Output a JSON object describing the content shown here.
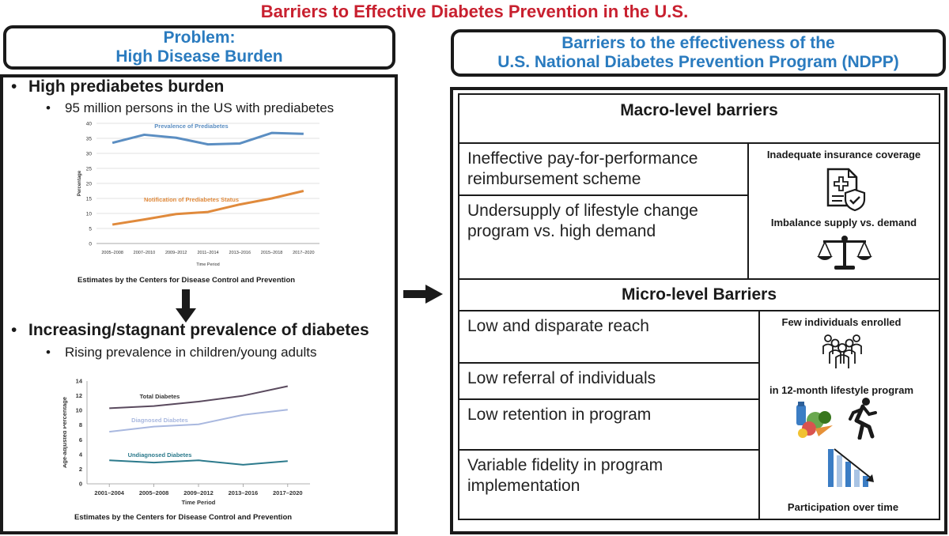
{
  "title": "Barriers to Effective Diabetes Prevention in the U.S.",
  "left_header": {
    "line1": "Problem:",
    "line2": "High Disease Burden"
  },
  "right_header": {
    "line1": "Barriers to the effectiveness of the",
    "line2": "U.S. National Diabetes Prevention Program (NDPP)"
  },
  "left_panel": {
    "bullet1": "High prediabetes burden",
    "sub1": "95 million persons in the US with prediabetes",
    "caption1": "Estimates by the Centers for Disease Control and Prevention",
    "bullet2": "Increasing/stagnant prevalence of diabetes",
    "sub2": "Rising prevalence in children/young adults",
    "caption2": "Estimates by the  Centers for Disease Control and Prevention"
  },
  "macro": {
    "title": "Macro-level barriers",
    "items": [
      "Ineffective pay-for-performance reimbursement scheme",
      "Undersupply of lifestyle change program vs. high demand"
    ],
    "side_label1": "Inadequate  insurance coverage",
    "side_label2": "Imbalance supply vs. demand"
  },
  "micro": {
    "title": "Micro-level Barriers",
    "items": [
      "Low and disparate reach",
      "Low referral of individuals",
      "Low retention in program",
      "Variable fidelity in program implementation"
    ],
    "side_label1": "Few  individuals enrolled",
    "side_label2": "in 12-month lifestyle program",
    "side_label3": "Participation over time"
  },
  "chart_data": [
    {
      "type": "line",
      "x": [
        "2005–2008",
        "2007–2010",
        "2009–2012",
        "2011–2014",
        "2013–2016",
        "2015–2018",
        "2017–2020"
      ],
      "series": [
        {
          "name": "Prevalence of Prediabetes",
          "values": [
            33.5,
            36.2,
            35.2,
            33.0,
            33.3,
            36.8,
            36.5
          ],
          "color": "#5b8ec2"
        },
        {
          "name": "Notification of Prediabetes Status",
          "values": [
            6.3,
            8.0,
            9.8,
            10.5,
            13.0,
            15.0,
            17.5
          ],
          "color": "#e08a3c"
        }
      ],
      "ylabel": "Percentage",
      "xlabel": "Time Period",
      "ylim": [
        0,
        40
      ],
      "yticks": [
        0,
        5,
        10,
        15,
        20,
        25,
        30,
        35,
        40
      ],
      "grid": true
    },
    {
      "type": "line",
      "x": [
        "2001–2004",
        "2005–2008",
        "2009–2012",
        "2013–2016",
        "2017–2020"
      ],
      "series": [
        {
          "name": "Total Diabetes",
          "values": [
            10.3,
            10.6,
            11.2,
            12.0,
            13.3
          ],
          "color": "#5a4a5e"
        },
        {
          "name": "Diagnosed Diabetes",
          "values": [
            7.1,
            7.8,
            8.1,
            9.4,
            10.1
          ],
          "color": "#a9b8df"
        },
        {
          "name": "Undiagnosed Diabetes",
          "values": [
            3.2,
            2.9,
            3.2,
            2.6,
            3.1
          ],
          "color": "#2c7a8c"
        }
      ],
      "ylabel": "Age-adjusted Percentage",
      "xlabel": "Time Period",
      "ylim": [
        0,
        14
      ],
      "yticks": [
        0,
        2,
        4,
        6,
        8,
        10,
        12,
        14
      ],
      "grid": false
    }
  ],
  "icons": {
    "insurance": "insurance-document-shield-icon",
    "scale": "balance-scale-icon",
    "people": "group-of-people-icon",
    "food": "healthy-food-icon",
    "runner": "running-person-icon",
    "bars": "declining-bar-chart-icon",
    "arrow_down": "down-arrow-icon",
    "arrow_right": "right-arrow-icon"
  }
}
